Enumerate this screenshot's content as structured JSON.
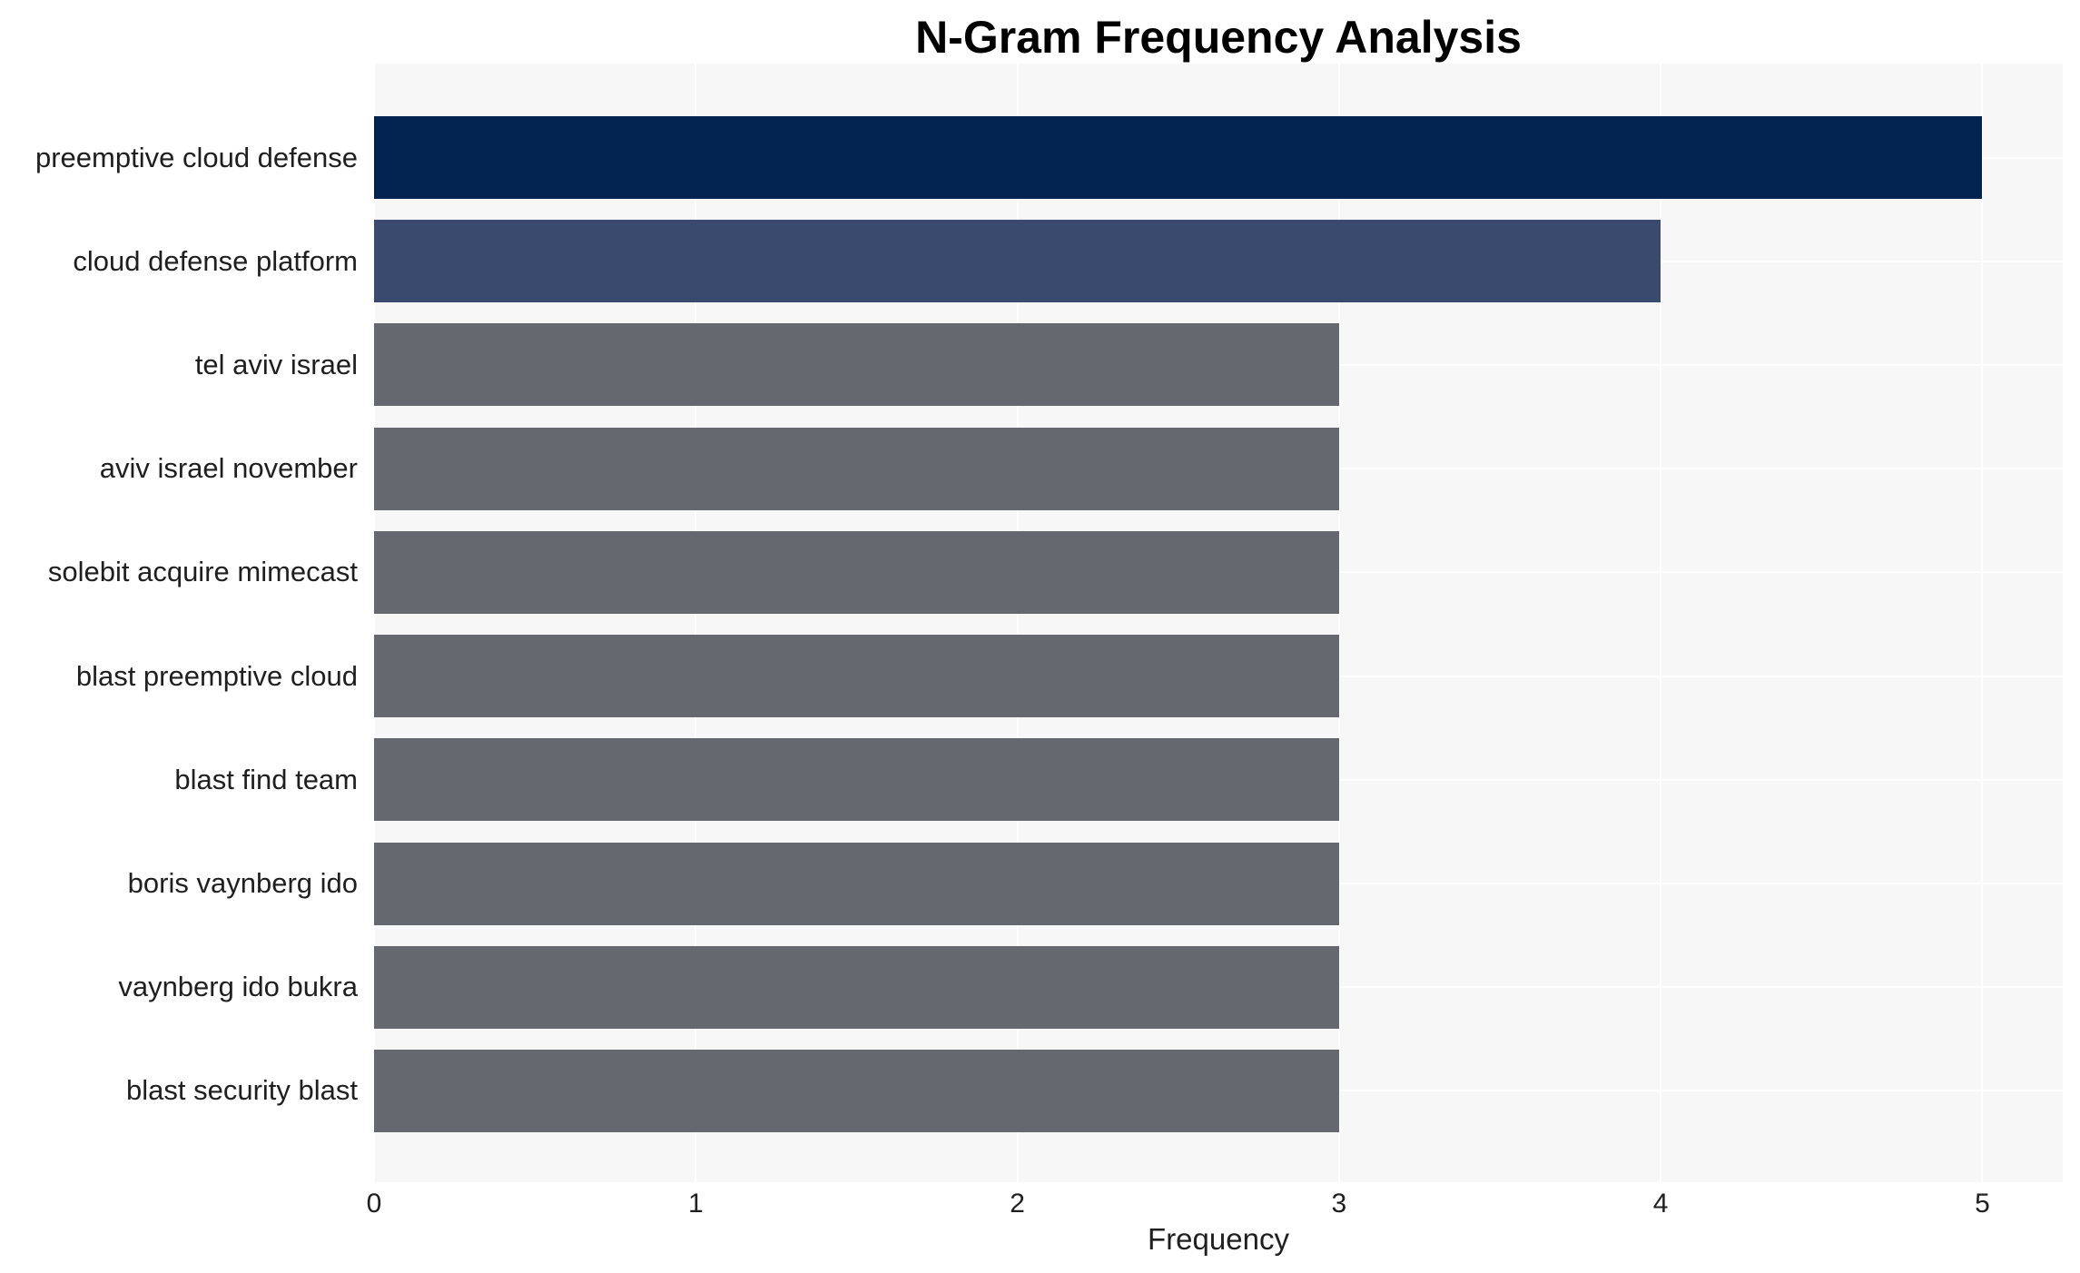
{
  "figure": {
    "title": "N-Gram Frequency Analysis",
    "xlabel": "Frequency"
  },
  "colors": {
    "bar_rank1": "#022350",
    "bar_rank2": "#394A6E",
    "bar_default": "#65686F",
    "plot_background": "#F7F7F8",
    "gridline": "#FFFFFF",
    "tick_text": "#1F1F1F",
    "title_text": "#000000"
  },
  "chart_data": {
    "type": "bar",
    "orientation": "horizontal",
    "title": "N-Gram Frequency Analysis",
    "xlabel": "Frequency",
    "ylabel": "",
    "categories": [
      "preemptive cloud defense",
      "cloud defense platform",
      "tel aviv israel",
      "aviv israel november",
      "solebit acquire mimecast",
      "blast preemptive cloud",
      "blast find team",
      "boris vaynberg ido",
      "vaynberg ido bukra",
      "blast security blast"
    ],
    "values": [
      5,
      4,
      3,
      3,
      3,
      3,
      3,
      3,
      3,
      3
    ],
    "bar_colors": [
      "#022350",
      "#394A6E",
      "#65686F",
      "#65686F",
      "#65686F",
      "#65686F",
      "#65686F",
      "#65686F",
      "#65686F",
      "#65686F"
    ],
    "xticks": [
      0,
      1,
      2,
      3,
      4,
      5
    ],
    "xlim": [
      0,
      5.25
    ],
    "grid": true,
    "legend_position": "none"
  }
}
